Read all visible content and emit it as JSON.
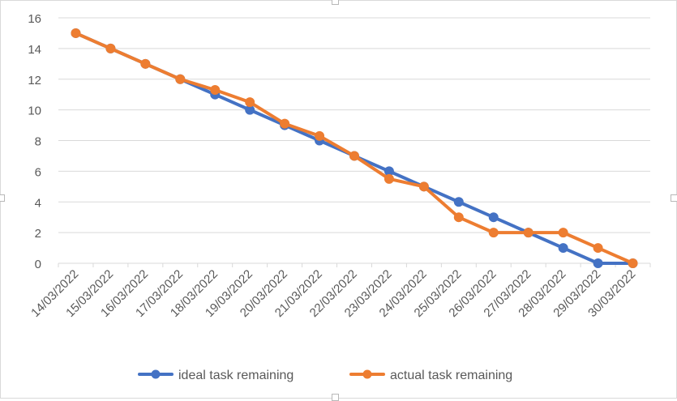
{
  "chart_data": {
    "type": "line",
    "title": "",
    "xlabel": "",
    "ylabel": "",
    "ylim": [
      0,
      16
    ],
    "y_ticks": [
      "0",
      "2",
      "4",
      "6",
      "8",
      "10",
      "12",
      "14",
      "16"
    ],
    "grid": "horizontal",
    "legend_position": "bottom",
    "categories": [
      "14/03/2022",
      "15/03/2022",
      "16/03/2022",
      "17/03/2022",
      "18/03/2022",
      "19/03/2022",
      "20/03/2022",
      "21/03/2022",
      "22/03/2022",
      "23/03/2022",
      "24/03/2022",
      "25/03/2022",
      "26/03/2022",
      "27/03/2022",
      "28/03/2022",
      "29/03/2022",
      "30/03/2022"
    ],
    "series": [
      {
        "name": "ideal task remaining",
        "color": "#4472C4",
        "values": [
          15,
          14,
          13,
          12,
          11,
          10,
          9,
          8,
          7,
          6,
          5,
          4,
          3,
          2,
          1,
          0,
          0
        ]
      },
      {
        "name": "actual task remaining",
        "color": "#ED7D31",
        "values": [
          15,
          14,
          13,
          12,
          11.3,
          10.5,
          9.1,
          8.3,
          7,
          5.5,
          5,
          3,
          2,
          2,
          2,
          1,
          0
        ]
      }
    ]
  },
  "colors": {
    "gridline": "#d9d9d9",
    "axis_text": "#595959",
    "frame_border": "#d9d9d9"
  }
}
